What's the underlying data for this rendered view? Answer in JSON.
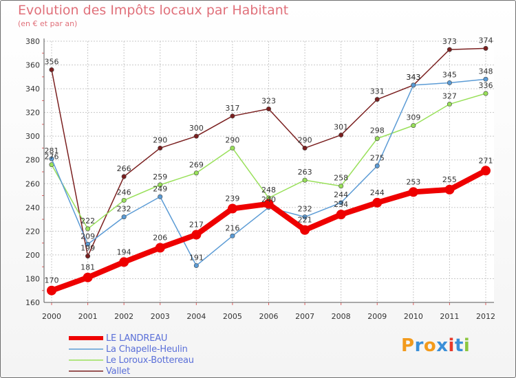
{
  "chart_data": {
    "type": "line",
    "title": "Evolution des Impôts locaux par Habitant",
    "subtitle": "(en € et par an)",
    "xlabel": "",
    "ylabel": "",
    "categories": [
      "2000",
      "2001",
      "2002",
      "2003",
      "2004",
      "2005",
      "2006",
      "2007",
      "2008",
      "2009",
      "2010",
      "2011",
      "2012"
    ],
    "ylim": [
      160,
      380
    ],
    "yticks": [
      160,
      180,
      200,
      220,
      240,
      260,
      280,
      300,
      320,
      340,
      360,
      380
    ],
    "grid": true,
    "legend_position": "bottom-left",
    "series": [
      {
        "name": "LE LANDREAU",
        "color": "#ee0000",
        "values": [
          170,
          181,
          194,
          206,
          217,
          239,
          243,
          221,
          234,
          244,
          253,
          255,
          271
        ],
        "labels": [
          "170",
          "181",
          "194",
          "206",
          "217",
          "239",
          "",
          "221",
          "234",
          "244",
          "253",
          "255",
          "271"
        ]
      },
      {
        "name": "La Chapelle-Heulin",
        "color": "#5b9bd5",
        "values": [
          281,
          209,
          232,
          249,
          191,
          216,
          240,
          232,
          244,
          275,
          343,
          345,
          348
        ],
        "labels": [
          "281",
          "209",
          "232",
          "249",
          "191",
          "216",
          "240",
          "232",
          "244",
          "275",
          "343",
          "345",
          "348"
        ]
      },
      {
        "name": "Le Loroux-Bottereau",
        "color": "#99e05a",
        "values": [
          276,
          222,
          246,
          259,
          269,
          290,
          248,
          263,
          258,
          298,
          309,
          327,
          336
        ],
        "labels": [
          "276",
          "222",
          "246",
          "259",
          "269",
          "290",
          "248",
          "263",
          "258",
          "298",
          "309",
          "327",
          "336"
        ]
      },
      {
        "name": "Vallet",
        "color": "#7a1f1f",
        "values": [
          356,
          199,
          266,
          290,
          300,
          317,
          323,
          290,
          301,
          331,
          343,
          373,
          374
        ],
        "labels": [
          "356",
          "199",
          "266",
          "290",
          "300",
          "317",
          "323",
          "290",
          "301",
          "331",
          "343",
          "373",
          "374"
        ]
      }
    ]
  },
  "logo": {
    "text": "Proxiti",
    "letters": [
      "P",
      "r",
      "o",
      "x",
      "i",
      "t",
      "i"
    ],
    "colors": [
      "#f29a1c",
      "#3a8fd8",
      "#f29a1c",
      "#3a8fd8",
      "#e8392a",
      "#3a8fd8",
      "#8cc63f"
    ]
  }
}
